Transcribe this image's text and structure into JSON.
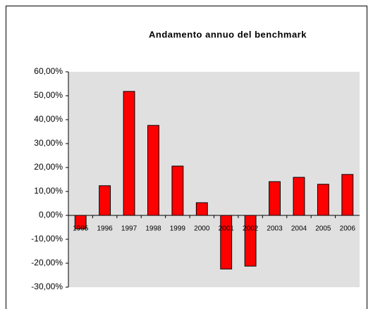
{
  "chart_data": {
    "type": "bar",
    "title": "Andamento annuo del benchmark",
    "categories": [
      "1995",
      "1996",
      "1997",
      "1998",
      "1999",
      "2000",
      "2001",
      "2002",
      "2003",
      "2004",
      "2005",
      "2006"
    ],
    "values": [
      -5.6,
      12.4,
      51.8,
      37.6,
      20.6,
      5.3,
      -22.4,
      -21.2,
      14.1,
      15.9,
      13.0,
      17.1
    ],
    "color": "#ff0000",
    "ylim": [
      -30,
      60
    ],
    "yticks": [
      {
        "value": -30,
        "label": "-30,00%"
      },
      {
        "value": -20,
        "label": "-20,00%"
      },
      {
        "value": -10,
        "label": "-10,00%"
      },
      {
        "value": 0,
        "label": "0,00%"
      },
      {
        "value": 10,
        "label": "10,00%"
      },
      {
        "value": 20,
        "label": "20,00%"
      },
      {
        "value": 30,
        "label": "30,00%"
      },
      {
        "value": 40,
        "label": "40,00%"
      },
      {
        "value": 50,
        "label": "50,00%"
      },
      {
        "value": 60,
        "label": "60,00%"
      }
    ],
    "grid": false
  }
}
